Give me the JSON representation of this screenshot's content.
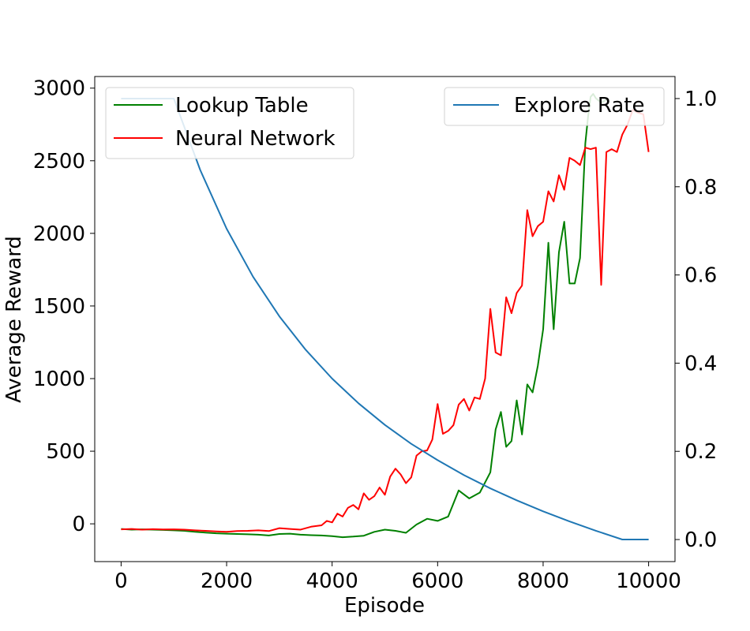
{
  "chart_data": {
    "type": "line",
    "xlabel": "Episode",
    "ylabel": "Average Reward",
    "y2label": "",
    "xlim": [
      -500,
      10500
    ],
    "ylim": [
      -260,
      3080
    ],
    "y2lim": [
      -0.05,
      1.05
    ],
    "x_ticks": [
      0,
      2000,
      4000,
      6000,
      8000,
      10000
    ],
    "y_ticks": [
      0,
      500,
      1000,
      1500,
      2000,
      2500,
      3000
    ],
    "y2_ticks": [
      0.0,
      0.2,
      0.4,
      0.6,
      0.8,
      1.0
    ],
    "x_tick_labels": [
      "0",
      "2000",
      "4000",
      "6000",
      "8000",
      "10000"
    ],
    "y_tick_labels": [
      "0",
      "500",
      "1000",
      "1500",
      "2000",
      "2500",
      "3000"
    ],
    "y2_tick_labels": [
      "0.0",
      "0.2",
      "0.4",
      "0.6",
      "0.8",
      "1.0"
    ],
    "legend_left_position": "upper left",
    "legend_right_position": "upper right",
    "series": [
      {
        "name": "Lookup Table",
        "axis": "left",
        "color": "#008000",
        "x": [
          0,
          200,
          400,
          600,
          800,
          1000,
          1200,
          1400,
          1600,
          1800,
          2000,
          2200,
          2400,
          2600,
          2800,
          3000,
          3200,
          3400,
          3600,
          3800,
          4000,
          4200,
          4400,
          4600,
          4800,
          5000,
          5200,
          5400,
          5600,
          5800,
          6000,
          6200,
          6400,
          6600,
          6800,
          7000,
          7100,
          7200,
          7300,
          7400,
          7500,
          7600,
          7700,
          7800,
          7900,
          8000,
          8100,
          8200,
          8300,
          8400,
          8500,
          8600,
          8700,
          8800,
          8850,
          8900,
          8950,
          9000,
          9100,
          9200
        ],
        "y": [
          -35,
          -40,
          -38,
          -40,
          -42,
          -45,
          -48,
          -55,
          -60,
          -65,
          -68,
          -70,
          -72,
          -75,
          -80,
          -70,
          -68,
          -75,
          -78,
          -80,
          -85,
          -92,
          -88,
          -82,
          -55,
          -40,
          -48,
          -62,
          -5,
          35,
          20,
          50,
          230,
          175,
          215,
          355,
          650,
          770,
          530,
          570,
          850,
          615,
          960,
          905,
          1090,
          1340,
          1935,
          1340,
          1870,
          2080,
          1655,
          1655,
          1830,
          2620,
          2800,
          2940,
          2960,
          2930,
          2900,
          2920
        ]
      },
      {
        "name": "Neural Network",
        "axis": "left",
        "color": "#ff0000",
        "x": [
          0,
          200,
          400,
          600,
          800,
          1000,
          1200,
          1400,
          1600,
          1800,
          2000,
          2200,
          2400,
          2600,
          2800,
          3000,
          3200,
          3400,
          3600,
          3800,
          3900,
          4000,
          4100,
          4200,
          4300,
          4400,
          4500,
          4600,
          4700,
          4800,
          4900,
          5000,
          5100,
          5200,
          5300,
          5400,
          5500,
          5600,
          5700,
          5800,
          5900,
          6000,
          6100,
          6200,
          6300,
          6400,
          6500,
          6600,
          6700,
          6800,
          6900,
          7000,
          7100,
          7200,
          7300,
          7400,
          7500,
          7600,
          7700,
          7800,
          7900,
          8000,
          8100,
          8200,
          8300,
          8400,
          8500,
          8600,
          8700,
          8800,
          8900,
          9000,
          9100,
          9200,
          9300,
          9400,
          9500,
          9600,
          9700,
          9800,
          9900,
          10000
        ],
        "y": [
          -38,
          -35,
          -40,
          -37,
          -39,
          -38,
          -40,
          -45,
          -48,
          -52,
          -55,
          -50,
          -48,
          -45,
          -50,
          -30,
          -35,
          -40,
          -20,
          -10,
          20,
          10,
          70,
          50,
          110,
          130,
          100,
          210,
          165,
          190,
          250,
          200,
          325,
          380,
          340,
          280,
          320,
          470,
          500,
          505,
          580,
          825,
          620,
          640,
          680,
          820,
          860,
          780,
          870,
          860,
          1000,
          1480,
          1180,
          1160,
          1560,
          1450,
          1590,
          1640,
          2160,
          1980,
          2050,
          2080,
          2290,
          2220,
          2400,
          2300,
          2520,
          2500,
          2470,
          2590,
          2580,
          2590,
          1645,
          2560,
          2580,
          2560,
          2680,
          2750,
          2850,
          2830,
          2820,
          2560
        ]
      },
      {
        "name": "Explore Rate",
        "axis": "right",
        "color": "#1f77b4",
        "x": [
          0,
          1000,
          1500,
          2000,
          2500,
          3000,
          3500,
          4000,
          4500,
          5000,
          5500,
          6000,
          6500,
          7000,
          7500,
          8000,
          8500,
          9000,
          9500,
          10000
        ],
        "y": [
          1.0,
          1.0,
          0.838,
          0.705,
          0.596,
          0.506,
          0.43,
          0.365,
          0.309,
          0.26,
          0.217,
          0.18,
          0.146,
          0.116,
          0.089,
          0.064,
          0.041,
          0.02,
          0.0,
          0.0
        ]
      }
    ]
  }
}
